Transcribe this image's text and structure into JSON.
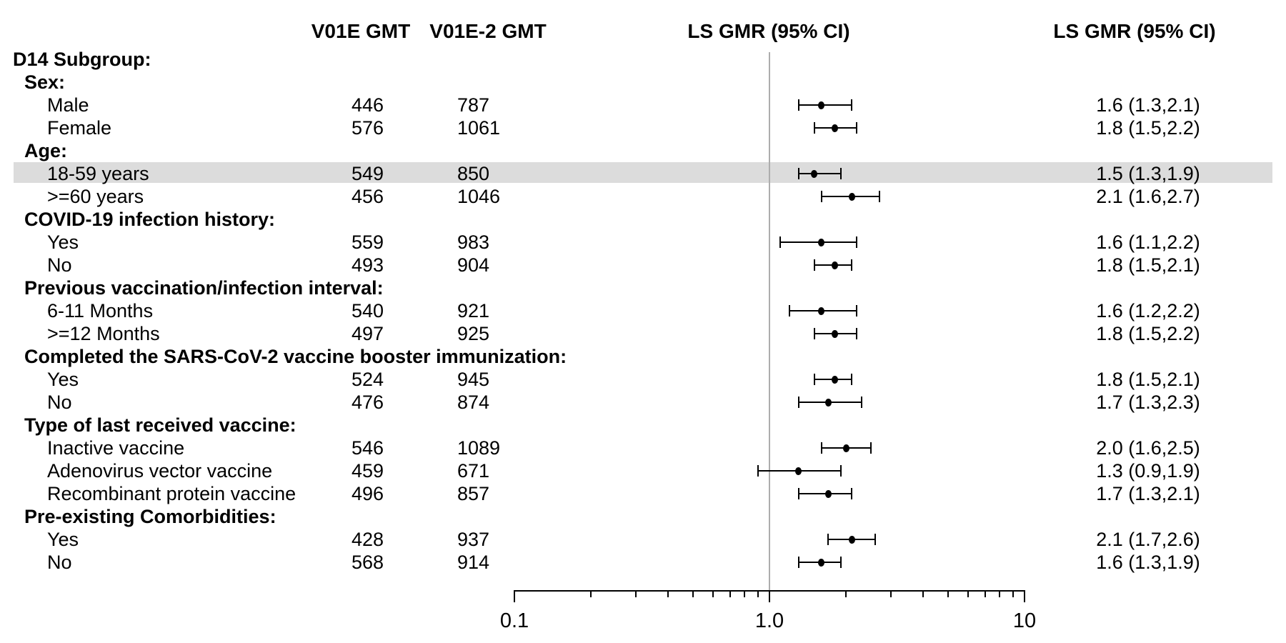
{
  "figure": {
    "headers": {
      "gmt1": "V01E GMT",
      "gmt2": "V01E-2 GMT",
      "forest": "LS GMR (95% CI)",
      "values": "LS GMR (95% CI)"
    }
  },
  "colors": {
    "background": "#ffffff",
    "text": "#000000",
    "highlight_band": "#dcdcdc",
    "reference_line": "#adadad",
    "marker": "#000000",
    "axis": "#000000"
  },
  "chart_data": {
    "type": "forest",
    "title": "",
    "xlabel": "",
    "x_scale": "log",
    "xlim": [
      0.1,
      10
    ],
    "reference_line_value": 1.0,
    "grid": false,
    "columns": [
      "V01E GMT",
      "V01E-2 GMT",
      "LS GMR (95% CI)",
      "LS GMR (95% CI)"
    ],
    "axis": {
      "tick_labels": [
        {
          "value": 0.1,
          "label": "0.1"
        },
        {
          "value": 1.0,
          "label": "1.0"
        },
        {
          "value": 10,
          "label": "10"
        }
      ],
      "minor_ticks": [
        0.2,
        0.3,
        0.4,
        0.5,
        0.6,
        0.7,
        0.8,
        0.9,
        2,
        3,
        4,
        5,
        6,
        7,
        8,
        9
      ]
    },
    "rows": [
      {
        "label": "D14 Subgroup:",
        "level": 0,
        "bold": true
      },
      {
        "label": "Sex:",
        "level": 1,
        "bold": true
      },
      {
        "label": "Male",
        "level": 2,
        "bold": false,
        "gmt_v01e": "446",
        "gmt_v01e2": "787",
        "gmr": 1.6,
        "ci_low": 1.3,
        "ci_high": 2.1,
        "gmr_text": "1.6 (1.3,2.1)"
      },
      {
        "label": "Female",
        "level": 2,
        "bold": false,
        "gmt_v01e": "576",
        "gmt_v01e2": "1061",
        "gmr": 1.8,
        "ci_low": 1.5,
        "ci_high": 2.2,
        "gmr_text": "1.8 (1.5,2.2)"
      },
      {
        "label": "Age:",
        "level": 1,
        "bold": true
      },
      {
        "label": "18-59 years",
        "level": 2,
        "bold": false,
        "gmt_v01e": "549",
        "gmt_v01e2": "850",
        "gmr": 1.5,
        "ci_low": 1.3,
        "ci_high": 1.9,
        "gmr_text": "1.5 (1.3,1.9)",
        "highlight": true
      },
      {
        "label": ">=60 years",
        "level": 2,
        "bold": false,
        "gmt_v01e": "456",
        "gmt_v01e2": "1046",
        "gmr": 2.1,
        "ci_low": 1.6,
        "ci_high": 2.7,
        "gmr_text": "2.1 (1.6,2.7)"
      },
      {
        "label": "COVID-19 infection history:",
        "level": 1,
        "bold": true
      },
      {
        "label": "Yes",
        "level": 2,
        "bold": false,
        "gmt_v01e": "559",
        "gmt_v01e2": "983",
        "gmr": 1.6,
        "ci_low": 1.1,
        "ci_high": 2.2,
        "gmr_text": "1.6 (1.1,2.2)"
      },
      {
        "label": "No",
        "level": 2,
        "bold": false,
        "gmt_v01e": "493",
        "gmt_v01e2": "904",
        "gmr": 1.8,
        "ci_low": 1.5,
        "ci_high": 2.1,
        "gmr_text": "1.8 (1.5,2.1)"
      },
      {
        "label": "Previous vaccination/infection interval:",
        "level": 1,
        "bold": true
      },
      {
        "label": "6-11 Months",
        "level": 2,
        "bold": false,
        "gmt_v01e": "540",
        "gmt_v01e2": "921",
        "gmr": 1.6,
        "ci_low": 1.2,
        "ci_high": 2.2,
        "gmr_text": "1.6 (1.2,2.2)"
      },
      {
        "label": ">=12 Months",
        "level": 2,
        "bold": false,
        "gmt_v01e": "497",
        "gmt_v01e2": "925",
        "gmr": 1.8,
        "ci_low": 1.5,
        "ci_high": 2.2,
        "gmr_text": "1.8 (1.5,2.2)"
      },
      {
        "label": "Completed the SARS-CoV-2 vaccine booster immunization:",
        "level": 1,
        "bold": true
      },
      {
        "label": "Yes",
        "level": 2,
        "bold": false,
        "gmt_v01e": "524",
        "gmt_v01e2": "945",
        "gmr": 1.8,
        "ci_low": 1.5,
        "ci_high": 2.1,
        "gmr_text": "1.8 (1.5,2.1)"
      },
      {
        "label": "No",
        "level": 2,
        "bold": false,
        "gmt_v01e": "476",
        "gmt_v01e2": "874",
        "gmr": 1.7,
        "ci_low": 1.3,
        "ci_high": 2.3,
        "gmr_text": "1.7 (1.3,2.3)"
      },
      {
        "label": "Type of last received vaccine:",
        "level": 1,
        "bold": true
      },
      {
        "label": "Inactive vaccine",
        "level": 2,
        "bold": false,
        "gmt_v01e": "546",
        "gmt_v01e2": "1089",
        "gmr": 2.0,
        "ci_low": 1.6,
        "ci_high": 2.5,
        "gmr_text": "2.0 (1.6,2.5)"
      },
      {
        "label": "Adenovirus vector vaccine",
        "level": 2,
        "bold": false,
        "gmt_v01e": "459",
        "gmt_v01e2": "671",
        "gmr": 1.3,
        "ci_low": 0.9,
        "ci_high": 1.9,
        "gmr_text": "1.3 (0.9,1.9)"
      },
      {
        "label": "Recombinant protein vaccine",
        "level": 2,
        "bold": false,
        "gmt_v01e": "496",
        "gmt_v01e2": "857",
        "gmr": 1.7,
        "ci_low": 1.3,
        "ci_high": 2.1,
        "gmr_text": "1.7 (1.3,2.1)"
      },
      {
        "label": "Pre-existing Comorbidities:",
        "level": 1,
        "bold": true
      },
      {
        "label": "Yes",
        "level": 2,
        "bold": false,
        "gmt_v01e": "428",
        "gmt_v01e2": "937",
        "gmr": 2.1,
        "ci_low": 1.7,
        "ci_high": 2.6,
        "gmr_text": "2.1 (1.7,2.6)"
      },
      {
        "label": "No",
        "level": 2,
        "bold": false,
        "gmt_v01e": "568",
        "gmt_v01e2": "914",
        "gmr": 1.6,
        "ci_low": 1.3,
        "ci_high": 1.9,
        "gmr_text": "1.6 (1.3,1.9)"
      }
    ]
  }
}
